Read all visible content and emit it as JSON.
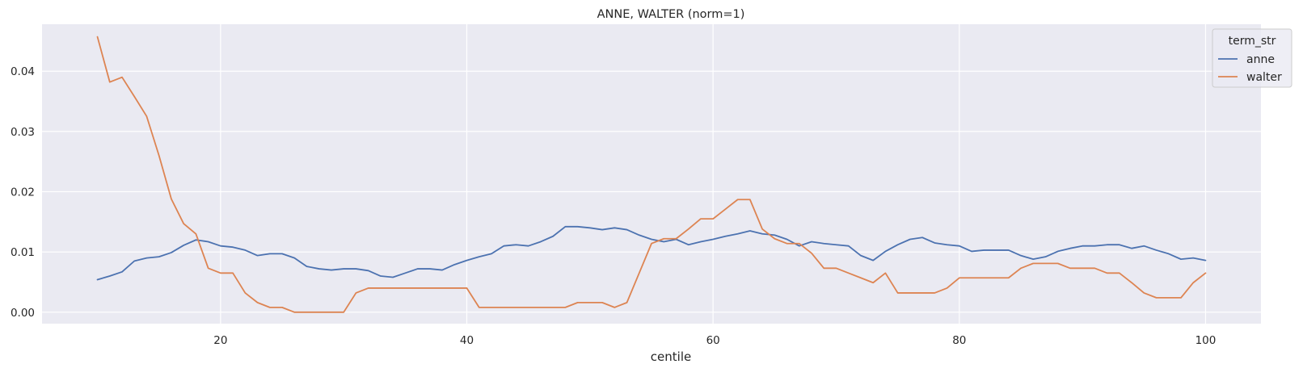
{
  "chart_data": {
    "type": "line",
    "title": "ANNE, WALTER (norm=1)",
    "xlabel": "centile",
    "ylabel": "",
    "xlim": [
      5.5,
      104.5
    ],
    "ylim": [
      -0.0019,
      0.0478
    ],
    "xticks": [
      20,
      40,
      60,
      80,
      100
    ],
    "xtick_labels": [
      "20",
      "40",
      "60",
      "80",
      "100"
    ],
    "yticks": [
      0.0,
      0.01,
      0.02,
      0.03,
      0.04
    ],
    "ytick_labels": [
      "0.00",
      "0.01",
      "0.02",
      "0.03",
      "0.04"
    ],
    "grid": true,
    "legend": {
      "title": "term_str",
      "placement": "top-right"
    },
    "x": [
      10,
      11,
      12,
      13,
      14,
      15,
      16,
      17,
      18,
      19,
      20,
      21,
      22,
      23,
      24,
      25,
      26,
      27,
      28,
      29,
      30,
      31,
      32,
      33,
      34,
      35,
      36,
      37,
      38,
      39,
      40,
      41,
      42,
      43,
      44,
      45,
      46,
      47,
      48,
      49,
      50,
      51,
      52,
      53,
      54,
      55,
      56,
      57,
      58,
      59,
      60,
      61,
      62,
      63,
      64,
      65,
      66,
      67,
      68,
      69,
      70,
      71,
      72,
      73,
      74,
      75,
      76,
      77,
      78,
      79,
      80,
      81,
      82,
      83,
      84,
      85,
      86,
      87,
      88,
      89,
      90,
      91,
      92,
      93,
      94,
      95,
      96,
      97,
      98,
      99,
      100
    ],
    "series": [
      {
        "name": "anne",
        "color": "#4c72b0",
        "values": [
          0.0054,
          0.006,
          0.0067,
          0.0085,
          0.009,
          0.0092,
          0.0099,
          0.0111,
          0.012,
          0.0117,
          0.011,
          0.0108,
          0.0103,
          0.0094,
          0.0097,
          0.0097,
          0.009,
          0.0076,
          0.0072,
          0.007,
          0.0072,
          0.0072,
          0.0069,
          0.006,
          0.0058,
          0.0065,
          0.0072,
          0.0072,
          0.007,
          0.0079,
          0.0086,
          0.0092,
          0.0097,
          0.011,
          0.0112,
          0.011,
          0.0117,
          0.0126,
          0.0142,
          0.0142,
          0.014,
          0.0137,
          0.014,
          0.0137,
          0.0128,
          0.0121,
          0.0117,
          0.0121,
          0.0112,
          0.0117,
          0.0121,
          0.0126,
          0.013,
          0.0135,
          0.013,
          0.0128,
          0.0121,
          0.011,
          0.0117,
          0.0114,
          0.0112,
          0.011,
          0.0094,
          0.0086,
          0.0101,
          0.0112,
          0.0121,
          0.0124,
          0.0115,
          0.0112,
          0.011,
          0.0101,
          0.0103,
          0.0103,
          0.0103,
          0.0094,
          0.0088,
          0.0092,
          0.0101,
          0.0106,
          0.011,
          0.011,
          0.0112,
          0.0112,
          0.0106,
          0.011,
          0.0103,
          0.0097,
          0.0088,
          0.009,
          0.0086
        ]
      },
      {
        "name": "walter",
        "color": "#dd8452",
        "values": [
          0.0457,
          0.0382,
          0.039,
          0.0358,
          0.0325,
          0.026,
          0.0188,
          0.0147,
          0.013,
          0.0073,
          0.0065,
          0.0065,
          0.0032,
          0.0016,
          0.0008,
          0.0008,
          0.0,
          0.0,
          0.0,
          0.0,
          0.0,
          0.0032,
          0.004,
          0.004,
          0.004,
          0.004,
          0.004,
          0.004,
          0.004,
          0.004,
          0.004,
          0.0008,
          0.0008,
          0.0008,
          0.0008,
          0.0008,
          0.0008,
          0.0008,
          0.0008,
          0.0016,
          0.0016,
          0.0016,
          0.0008,
          0.0016,
          0.0065,
          0.0114,
          0.0122,
          0.0122,
          0.0138,
          0.0155,
          0.0155,
          0.0171,
          0.0187,
          0.0187,
          0.0138,
          0.0122,
          0.0114,
          0.0114,
          0.0098,
          0.0073,
          0.0073,
          0.0065,
          0.0057,
          0.0049,
          0.0065,
          0.0032,
          0.0032,
          0.0032,
          0.0032,
          0.004,
          0.0057,
          0.0057,
          0.0057,
          0.0057,
          0.0057,
          0.0073,
          0.0081,
          0.0081,
          0.0081,
          0.0073,
          0.0073,
          0.0073,
          0.0065,
          0.0065,
          0.0049,
          0.0032,
          0.0024,
          0.0024,
          0.0024,
          0.0049,
          0.0065
        ]
      }
    ]
  }
}
